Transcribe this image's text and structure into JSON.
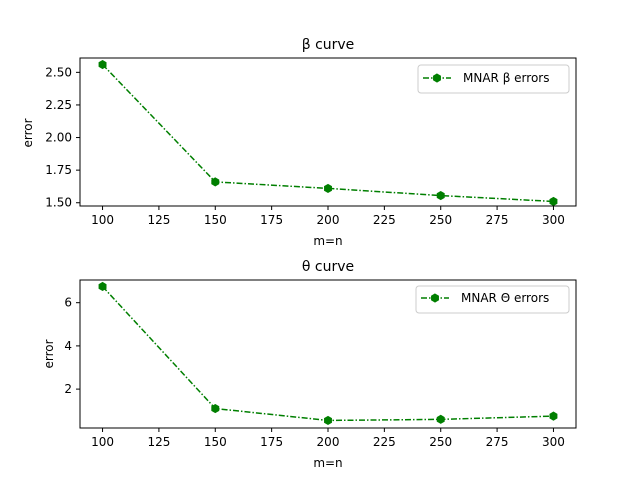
{
  "colors": {
    "series": "#007f00",
    "axis": "#000000",
    "legend_border": "#cccccc"
  },
  "chart_data": [
    {
      "type": "line",
      "title": "β curve",
      "xlabel": "m=n",
      "ylabel": "error",
      "xlim": [
        90,
        310
      ],
      "ylim": [
        1.475,
        2.61
      ],
      "xticks": [
        100,
        125,
        150,
        175,
        200,
        225,
        250,
        275,
        300
      ],
      "yticks": [
        1.5,
        1.75,
        2.0,
        2.25,
        2.5
      ],
      "ytick_labels": [
        "1.50",
        "1.75",
        "2.00",
        "2.25",
        "2.50"
      ],
      "legend_position": "upper right",
      "grid": false,
      "series": [
        {
          "name": "MNAR β errors",
          "line_style": "dash-dot",
          "marker": "hexagon",
          "x": [
            100,
            150,
            200,
            250,
            300
          ],
          "y": [
            2.56,
            1.66,
            1.61,
            1.555,
            1.51
          ]
        }
      ]
    },
    {
      "type": "line",
      "title": "θ curve",
      "xlabel": "m=n",
      "ylabel": "error",
      "xlim": [
        90,
        310
      ],
      "ylim": [
        0.2,
        7.05
      ],
      "xticks": [
        100,
        125,
        150,
        175,
        200,
        225,
        250,
        275,
        300
      ],
      "yticks": [
        2,
        4,
        6
      ],
      "ytick_labels": [
        "2",
        "4",
        "6"
      ],
      "legend_position": "upper right",
      "grid": false,
      "series": [
        {
          "name": "MNAR Θ errors",
          "line_style": "dash-dot",
          "marker": "hexagon",
          "x": [
            100,
            150,
            200,
            250,
            300
          ],
          "y": [
            6.75,
            1.1,
            0.55,
            0.6,
            0.75
          ]
        }
      ]
    }
  ]
}
